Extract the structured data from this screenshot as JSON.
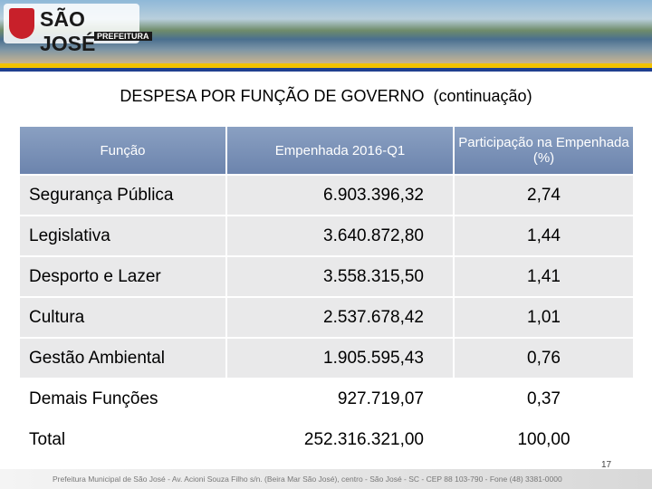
{
  "header": {
    "logo": "SÃO JOSÉ",
    "logo_sub": "PREFEITURA"
  },
  "title": "DESPESA POR FUNÇÃO DE GOVERNO",
  "title_note": "(continuação)",
  "table": {
    "columns": [
      "Função",
      "Empenhada 2016-Q1",
      "Participação na Empenhada (%)"
    ],
    "rows": [
      [
        "Segurança Pública",
        "6.903.396,32",
        "2,74"
      ],
      [
        "Legislativa",
        "3.640.872,80",
        "1,44"
      ],
      [
        "Desporto e Lazer",
        "3.558.315,50",
        "1,41"
      ],
      [
        "Cultura",
        "2.537.678,42",
        "1,01"
      ],
      [
        "Gestão Ambiental",
        "1.905.595,43",
        "0,76"
      ],
      [
        "Demais Funções",
        "927.719,07",
        "0,37"
      ],
      [
        "Total",
        "252.316.321,00",
        "100,00"
      ]
    ]
  },
  "page_number": "17",
  "footer": "Prefeitura Municipal de São José - Av. Acioni Souza Filho s/n. (Beira Mar São José), centro - São José - SC - CEP 88 103-790 - Fone (48) 3381-0000"
}
